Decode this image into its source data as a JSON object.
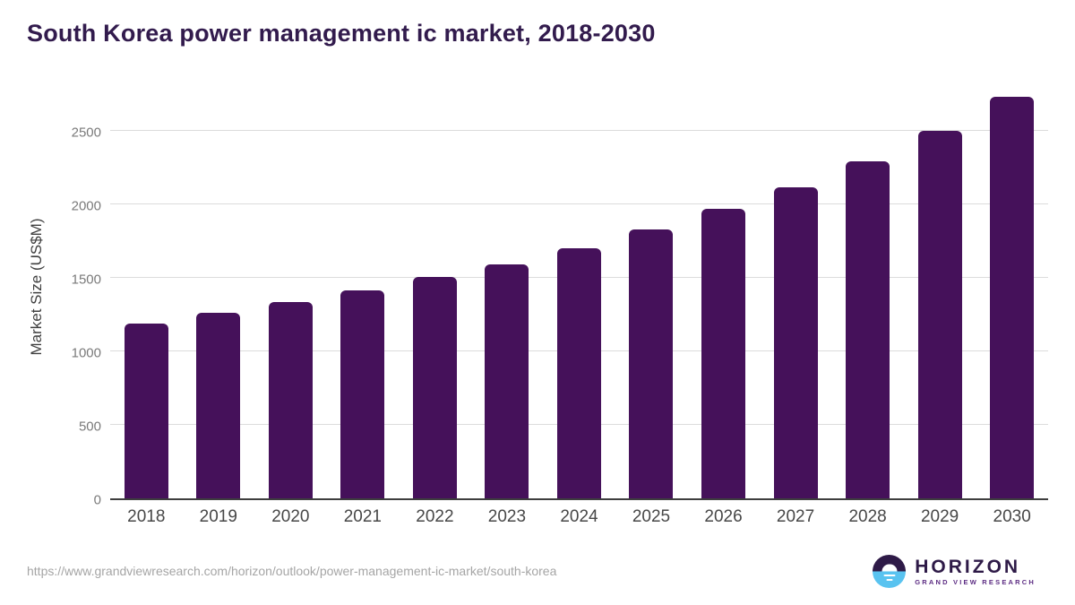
{
  "page": {
    "title": "South Korea power management ic market, 2018-2030",
    "source_url": "https://www.grandviewresearch.com/horizon/outlook/power-management-ic-market/south-korea"
  },
  "logo": {
    "icon": "horizon-sun-icon",
    "name": "HORIZON",
    "subtitle": "GRAND VIEW RESEARCH",
    "colors": {
      "brand_dark_purple": "#2E1A47",
      "brand_light_blue": "#59C3F0",
      "brand_purple": "#5C2C83"
    }
  },
  "chart_data": {
    "type": "bar",
    "title": "South Korea power management ic market, 2018-2030",
    "categories": [
      "2018",
      "2019",
      "2020",
      "2021",
      "2022",
      "2023",
      "2024",
      "2025",
      "2026",
      "2027",
      "2028",
      "2029",
      "2030"
    ],
    "values": [
      1190,
      1260,
      1335,
      1415,
      1505,
      1595,
      1700,
      1830,
      1970,
      2115,
      2295,
      2500,
      2730
    ],
    "xlabel": "",
    "ylabel": "Market Size (US$M)",
    "ylim": [
      0,
      2800
    ],
    "yticks": [
      0,
      500,
      1000,
      1500,
      2000,
      2500
    ],
    "bar_color": "#45115A",
    "grid": "horizontal",
    "legend": "none",
    "title_color": "#321B4D",
    "axis_color": "#3E3E3E",
    "gridline_color": "#DCDCDC"
  }
}
